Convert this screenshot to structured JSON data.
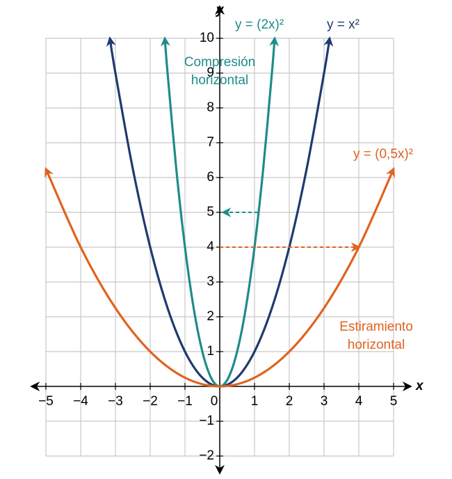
{
  "chart_data": {
    "type": "line",
    "x_label": "x",
    "y_label": "y",
    "xlim": [
      -5,
      5
    ],
    "ylim": [
      -2,
      10
    ],
    "xticks": [
      {
        "value": -5,
        "label": "−5"
      },
      {
        "value": -4,
        "label": "−4"
      },
      {
        "value": -3,
        "label": "−3"
      },
      {
        "value": -2,
        "label": "−2"
      },
      {
        "value": -1,
        "label": "−1"
      },
      0,
      1,
      2,
      3,
      4,
      5
    ],
    "yticks": [
      {
        "value": -2,
        "label": "−2"
      },
      {
        "value": -1,
        "label": "−1"
      },
      1,
      2,
      3,
      4,
      5,
      6,
      7,
      8,
      9,
      10
    ],
    "grid": true,
    "series": [
      {
        "name": "y = x²",
        "color": "#1f3a6e",
        "x": [
          -3.16,
          -3,
          -2.5,
          -2,
          -1.5,
          -1,
          -0.5,
          0,
          0.5,
          1,
          1.5,
          2,
          2.5,
          3,
          3.16
        ],
        "values": [
          10,
          9,
          6.25,
          4,
          2.25,
          1,
          0.25,
          0,
          0.25,
          1,
          2.25,
          4,
          6.25,
          9,
          10
        ]
      },
      {
        "name": "y = (2x)²",
        "color": "#1e8c88",
        "x": [
          -1.58,
          -1.5,
          -1.25,
          -1,
          -0.75,
          -0.5,
          -0.25,
          0,
          0.25,
          0.5,
          0.75,
          1,
          1.25,
          1.5,
          1.58
        ],
        "values": [
          10,
          9,
          6.25,
          4,
          2.25,
          1,
          0.25,
          0,
          0.25,
          1,
          2.25,
          4,
          6.25,
          9,
          10
        ]
      },
      {
        "name": "y = (0,5x)²",
        "color": "#e0621e",
        "x": [
          -5,
          -4,
          -3,
          -2,
          -1,
          0,
          1,
          2,
          3,
          4,
          5
        ],
        "values": [
          6.25,
          4,
          2.25,
          1,
          0.25,
          0,
          0.25,
          1,
          2.25,
          4,
          6.25
        ]
      }
    ],
    "annotations": [
      {
        "lines": [
          "Compresión",
          "horizontal"
        ],
        "color": "#1e8c88",
        "at": [
          0,
          9.3
        ]
      },
      {
        "lines": [
          "Estiramiento",
          "horizontal"
        ],
        "color": "#e0621e",
        "at": [
          4.5,
          1.7
        ]
      }
    ],
    "arrows": [
      {
        "color": "#1e8c88",
        "from": [
          1.1,
          5
        ],
        "to": [
          0.1,
          5
        ]
      },
      {
        "color": "#e0621e",
        "from": [
          0,
          4
        ],
        "to": [
          4,
          4
        ]
      }
    ]
  }
}
